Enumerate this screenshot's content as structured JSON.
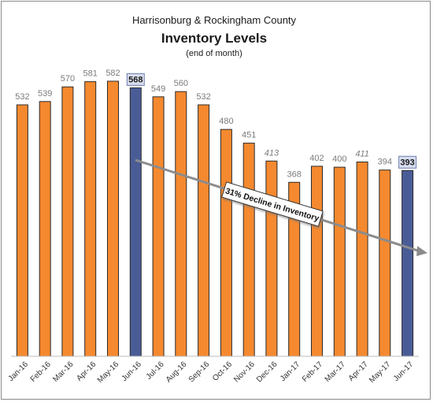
{
  "chart_data": {
    "type": "bar",
    "title": "Inventory Levels",
    "title_line1": "Harrisonburg & Rockingham County",
    "subtitle": "(end of month)",
    "xlabel": "",
    "ylabel": "",
    "ylim": [
      0,
      600
    ],
    "grid": false,
    "categories": [
      "Jan-16",
      "Feb-16",
      "Mar-16",
      "Apr-16",
      "May-16",
      "Jun-16",
      "Jul-16",
      "Aug-16",
      "Sep-16",
      "Oct-16",
      "Nov-16",
      "Dec-16",
      "Jan-17",
      "Feb-17",
      "Mar-17",
      "Apr-17",
      "May-17",
      "Jun-17"
    ],
    "values": [
      532,
      539,
      570,
      581,
      582,
      568,
      549,
      560,
      532,
      480,
      451,
      413,
      368,
      402,
      400,
      411,
      394,
      393
    ],
    "highlighted": [
      "Jun-16",
      "Jun-17"
    ],
    "italic_labels": [
      "Dec-16",
      "Apr-17"
    ],
    "annotation": "31% Decline in Inventory",
    "colors": {
      "bar": "#F5892F",
      "bar_stroke": "#2b2b2b",
      "highlight_bar": "#4A5C96",
      "highlight_label_bg": "#D7DDEE",
      "arrow": "#8c8c8c"
    }
  }
}
